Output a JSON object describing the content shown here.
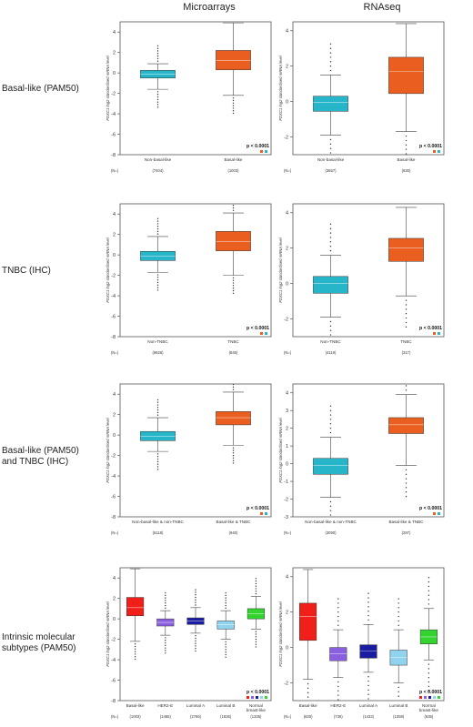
{
  "columns": [
    "Microarrays",
    "RNAseq"
  ],
  "rows": [
    {
      "label": "Basal-like (PAM50)"
    },
    {
      "label": "TNBC (IHC)"
    },
    {
      "label": "Basal-like (PAM50) and TNBC (IHC)"
    },
    {
      "label": "Intrinsic molecular subtypes (PAM50)"
    }
  ],
  "ylabel": "FOXC1 log2 standardised mRNA level",
  "n_label": "(N=)",
  "pvalue": "p < 0.0001",
  "colors": {
    "cyan": "#26b5c9",
    "orange": "#ea5f1f",
    "red": "#f01f1a",
    "purple": "#8a5fe0",
    "navy": "#1b1da0",
    "lightblue": "#8fd3ef",
    "green": "#33d330"
  },
  "chart_data": [
    {
      "type": "box",
      "row": 0,
      "col": 0,
      "ylim": [
        -8,
        5
      ],
      "yticks": [
        4,
        2,
        0,
        -2,
        -4,
        -6,
        -8
      ],
      "categories": [
        "Non-basal-like",
        "Basal-like"
      ],
      "n": [
        "(7404)",
        "(1003)"
      ],
      "colors": [
        "#26b5c9",
        "#ea5f1f"
      ],
      "boxes": [
        {
          "low": -1.6,
          "q1": -0.5,
          "median": -0.1,
          "q3": 0.25,
          "high": 0.9
        },
        {
          "low": -2.2,
          "q1": 0.3,
          "median": 1.2,
          "q3": 2.2,
          "high": 4.9
        }
      ],
      "legend": [
        "orange",
        "cyan"
      ]
    },
    {
      "type": "box",
      "row": 0,
      "col": 1,
      "ylim": [
        -3,
        4.5
      ],
      "yticks": [
        4,
        2,
        0,
        -2
      ],
      "categories": [
        "Non-basal-like",
        "Basal-like"
      ],
      "n": [
        "(3657)",
        "(630)"
      ],
      "colors": [
        "#26b5c9",
        "#ea5f1f"
      ],
      "boxes": [
        {
          "low": -1.9,
          "q1": -0.55,
          "median": -0.05,
          "q3": 0.3,
          "high": 1.5
        },
        {
          "low": -1.7,
          "q1": 0.45,
          "median": 1.7,
          "q3": 2.5,
          "high": 4.4
        }
      ],
      "legend": [
        "orange",
        "cyan"
      ]
    },
    {
      "type": "box",
      "row": 1,
      "col": 0,
      "ylim": [
        -8,
        5
      ],
      "yticks": [
        4,
        2,
        0,
        -2,
        -4,
        -6,
        -8
      ],
      "categories": [
        "Non-TNBC",
        "TNBC"
      ],
      "n": [
        "(6926)",
        "(845)"
      ],
      "colors": [
        "#26b5c9",
        "#ea5f1f"
      ],
      "boxes": [
        {
          "low": -1.7,
          "q1": -0.55,
          "median": -0.1,
          "q3": 0.35,
          "high": 1.8
        },
        {
          "low": -2.0,
          "q1": 0.4,
          "median": 1.3,
          "q3": 2.3,
          "high": 4.1
        }
      ],
      "legend": [
        "orange",
        "cyan"
      ]
    },
    {
      "type": "box",
      "row": 1,
      "col": 1,
      "ylim": [
        -3,
        4.5
      ],
      "yticks": [
        4,
        2,
        0,
        -2
      ],
      "categories": [
        "Non-TNBC",
        "TNBC"
      ],
      "n": [
        "(4119)",
        "(317)"
      ],
      "colors": [
        "#26b5c9",
        "#ea5f1f"
      ],
      "boxes": [
        {
          "low": -1.9,
          "q1": -0.55,
          "median": 0.0,
          "q3": 0.4,
          "high": 1.6
        },
        {
          "low": -0.7,
          "q1": 1.25,
          "median": 2.0,
          "q3": 2.55,
          "high": 4.3
        }
      ],
      "legend": [
        "orange",
        "cyan"
      ]
    },
    {
      "type": "box",
      "row": 2,
      "col": 0,
      "ylim": [
        -8,
        5
      ],
      "yticks": [
        4,
        2,
        0,
        -2,
        -4,
        -6,
        -8
      ],
      "categories": [
        "Non-basal-like & non-TNBC",
        "Basal-like & TNBC"
      ],
      "n": [
        "(6118)",
        "(640)"
      ],
      "colors": [
        "#26b5c9",
        "#ea5f1f"
      ],
      "boxes": [
        {
          "low": -1.6,
          "q1": -0.55,
          "median": -0.1,
          "q3": 0.35,
          "high": 1.7
        },
        {
          "low": -1.0,
          "q1": 1.0,
          "median": 1.7,
          "q3": 2.3,
          "high": 4.2
        }
      ],
      "legend": [
        "orange",
        "cyan"
      ]
    },
    {
      "type": "box",
      "row": 2,
      "col": 1,
      "ylim": [
        -3,
        4.5
      ],
      "yticks": [
        4,
        3,
        2,
        1,
        0,
        -1,
        -2,
        -3
      ],
      "categories": [
        "Non-basal-like & non-TNBC",
        "Basal-like & TNBC"
      ],
      "n": [
        "(3090)",
        "(287)"
      ],
      "colors": [
        "#26b5c9",
        "#ea5f1f"
      ],
      "boxes": [
        {
          "low": -1.9,
          "q1": -0.6,
          "median": -0.1,
          "q3": 0.3,
          "high": 1.5
        },
        {
          "low": -0.1,
          "q1": 1.7,
          "median": 2.2,
          "q3": 2.6,
          "high": 3.9
        }
      ],
      "legend": [
        "orange",
        "cyan"
      ]
    },
    {
      "type": "box",
      "row": 3,
      "col": 0,
      "ylim": [
        -8,
        5
      ],
      "yticks": [
        4,
        2,
        0,
        -2,
        -4,
        -6,
        -8
      ],
      "categories": [
        "Basal-like",
        "HER2-E",
        "Luminal A",
        "Luminal B",
        "Normal breast-like"
      ],
      "n": [
        "(1003)",
        "(1465)",
        "(2766)",
        "(1926)",
        "(1335)"
      ],
      "colors": [
        "#f01f1a",
        "#8a5fe0",
        "#1b1da0",
        "#8fd3ef",
        "#33d330"
      ],
      "boxes": [
        {
          "low": -2.2,
          "q1": 0.3,
          "median": 1.1,
          "q3": 2.1,
          "high": 4.9
        },
        {
          "low": -1.6,
          "q1": -0.7,
          "median": -0.35,
          "q3": 0.0,
          "high": 0.8
        },
        {
          "low": -1.4,
          "q1": -0.55,
          "median": -0.2,
          "q3": 0.1,
          "high": 1.1
        },
        {
          "low": -2.0,
          "q1": -1.0,
          "median": -0.55,
          "q3": -0.2,
          "high": 0.8
        },
        {
          "low": -1.0,
          "q1": 0.0,
          "median": 0.5,
          "q3": 1.0,
          "high": 2.2
        }
      ],
      "legend": [
        "red",
        "purple",
        "navy",
        "lightblue",
        "green"
      ]
    },
    {
      "type": "box",
      "row": 3,
      "col": 1,
      "ylim": [
        -3,
        4.5
      ],
      "yticks": [
        4,
        2,
        0,
        -2
      ],
      "categories": [
        "Basal-like",
        "HER2-E",
        "Luminal A",
        "Luminal B",
        "Normal breast-like"
      ],
      "n": [
        "(630)",
        "(736)",
        "(1433)",
        "(1059)",
        "(635)"
      ],
      "colors": [
        "#f01f1a",
        "#8a5fe0",
        "#1b1da0",
        "#8fd3ef",
        "#33d330"
      ],
      "boxes": [
        {
          "low": -1.8,
          "q1": 0.4,
          "median": 1.75,
          "q3": 2.5,
          "high": 4.4
        },
        {
          "low": -1.7,
          "q1": -0.75,
          "median": -0.35,
          "q3": 0.0,
          "high": 1.0
        },
        {
          "low": -1.4,
          "q1": -0.6,
          "median": -0.2,
          "q3": 0.15,
          "high": 1.3
        },
        {
          "low": -2.0,
          "q1": -1.0,
          "median": -0.55,
          "q3": -0.15,
          "high": 1.0
        },
        {
          "low": -0.7,
          "q1": 0.2,
          "median": 0.6,
          "q3": 1.0,
          "high": 2.2
        }
      ],
      "legend": [
        "red",
        "purple",
        "navy",
        "lightblue",
        "green"
      ]
    }
  ]
}
